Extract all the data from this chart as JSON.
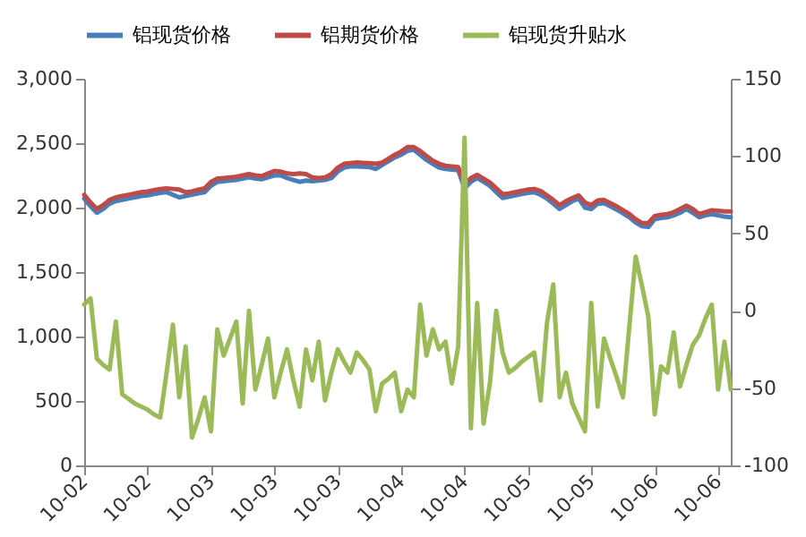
{
  "chart_data": {
    "type": "line",
    "categories": [
      "10-02",
      null,
      null,
      null,
      null,
      null,
      null,
      null,
      null,
      null,
      "10-02",
      null,
      null,
      null,
      null,
      null,
      null,
      null,
      null,
      null,
      "10-03",
      null,
      null,
      null,
      null,
      null,
      null,
      null,
      null,
      null,
      "10-03",
      null,
      null,
      null,
      null,
      null,
      null,
      null,
      null,
      null,
      "10-03",
      null,
      null,
      null,
      null,
      null,
      null,
      null,
      null,
      null,
      "10-04",
      null,
      null,
      null,
      null,
      null,
      null,
      null,
      null,
      null,
      "10-04",
      null,
      null,
      null,
      null,
      null,
      null,
      null,
      null,
      null,
      "10-05",
      null,
      null,
      null,
      null,
      null,
      null,
      null,
      null,
      null,
      "10-05",
      null,
      null,
      null,
      null,
      null,
      null,
      null,
      null,
      null,
      "10-06",
      null,
      null,
      null,
      null,
      null,
      null,
      null,
      null,
      null,
      "10-06",
      null,
      null
    ],
    "ylim": [
      0,
      3000
    ],
    "yticks": [
      0,
      500,
      {
        "value": 1000,
        "label": "1,000"
      },
      {
        "value": 1500,
        "label": "1,500"
      },
      {
        "value": 2000,
        "label": "2,000"
      },
      {
        "value": 2500,
        "label": "2,500"
      },
      {
        "value": 3000,
        "label": "3,000"
      }
    ],
    "y2lim": [
      -100,
      150
    ],
    "y2ticks": [
      -100,
      -50,
      0,
      50,
      100,
      150
    ],
    "legend": "top",
    "grid": false,
    "series": [
      {
        "name": "铝现货价格",
        "color": "#4a7ebb",
        "values": [
          2070,
          2010,
          1960,
          1990,
          2030,
          2050,
          2060,
          2070,
          2080,
          2090,
          2095,
          2105,
          2115,
          2120,
          2100,
          2080,
          2090,
          2100,
          2110,
          2120,
          2170,
          2200,
          2205,
          2210,
          2215,
          2225,
          2235,
          2225,
          2220,
          2235,
          2250,
          2250,
          2230,
          2215,
          2200,
          2210,
          2205,
          2210,
          2215,
          2230,
          2280,
          2310,
          2320,
          2320,
          2318,
          2315,
          2300,
          2330,
          2360,
          2390,
          2410,
          2440,
          2450,
          2410,
          2370,
          2340,
          2310,
          2300,
          2295,
          2290,
          2150,
          2200,
          2230,
          2200,
          2170,
          2120,
          2075,
          2085,
          2095,
          2105,
          2115,
          2120,
          2100,
          2070,
          2030,
          1990,
          2020,
          2050,
          2070,
          2000,
          1990,
          2030,
          2035,
          2010,
          1985,
          1955,
          1925,
          1885,
          1855,
          1850,
          1910,
          1920,
          1925,
          1940,
          1960,
          1990,
          1960,
          1925,
          1940,
          1950,
          1940,
          1930,
          1925
        ]
      },
      {
        "name": "铝期货价格",
        "color": "#be4b48",
        "values": [
          2100,
          2040,
          1990,
          2020,
          2060,
          2080,
          2090,
          2100,
          2110,
          2120,
          2125,
          2135,
          2145,
          2150,
          2145,
          2140,
          2120,
          2125,
          2140,
          2150,
          2200,
          2225,
          2230,
          2235,
          2240,
          2250,
          2260,
          2250,
          2245,
          2265,
          2285,
          2280,
          2265,
          2260,
          2265,
          2260,
          2235,
          2230,
          2235,
          2260,
          2310,
          2340,
          2345,
          2350,
          2348,
          2345,
          2340,
          2350,
          2380,
          2410,
          2435,
          2470,
          2470,
          2440,
          2400,
          2365,
          2340,
          2325,
          2320,
          2315,
          2180,
          2230,
          2255,
          2225,
          2195,
          2150,
          2105,
          2110,
          2120,
          2130,
          2140,
          2145,
          2130,
          2095,
          2060,
          2020,
          2050,
          2075,
          2095,
          2040,
          2020,
          2055,
          2060,
          2035,
          2010,
          1980,
          1950,
          1910,
          1880,
          1880,
          1935,
          1945,
          1950,
          1965,
          1990,
          2015,
          1990,
          1950,
          1965,
          1980,
          1975,
          1970,
          1970
        ]
      },
      {
        "name": "铝现货升贴水",
        "color": "#9bbb59",
        "axis": "y2",
        "values": [
          4,
          8,
          -31,
          -35,
          -38,
          -7,
          -54,
          -57,
          -60,
          -62,
          -64,
          -67,
          -69,
          -40,
          -9,
          -56,
          -23,
          -82,
          -70,
          -56,
          -78,
          -12,
          -29,
          -18,
          -7,
          -60,
          0,
          -51,
          -35,
          -18,
          -56,
          -40,
          -25,
          -45,
          -62,
          -25,
          -45,
          -20,
          -58,
          -40,
          -25,
          -33,
          -40,
          -27,
          -32,
          -38,
          -65,
          -47,
          -44,
          -40,
          -65,
          -51,
          -56,
          4,
          -29,
          -12,
          -25,
          -20,
          -47,
          -23,
          112,
          -76,
          5,
          -73,
          -47,
          0,
          -27,
          -40,
          -37,
          -33,
          -30,
          -27,
          -58,
          -8,
          17,
          -56,
          -40,
          -60,
          -69,
          -78,
          5,
          -62,
          -18,
          -31,
          -43,
          -56,
          -10,
          35,
          16,
          -4,
          -67,
          -36,
          -40,
          -14,
          -49,
          -35,
          -22,
          -16,
          -5,
          4,
          -51,
          -20,
          -51
        ]
      }
    ]
  }
}
